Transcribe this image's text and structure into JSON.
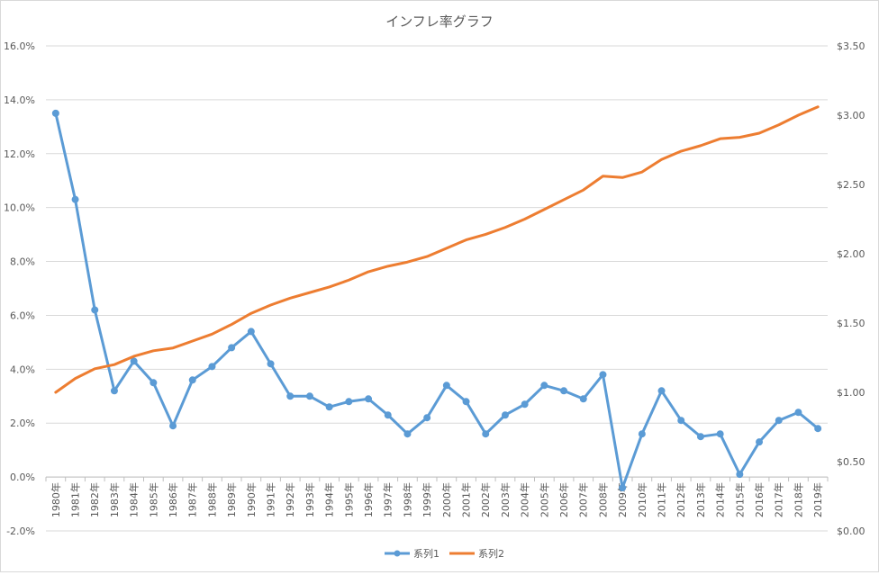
{
  "chart_data": {
    "type": "line",
    "title": "インフレ率グラフ",
    "categories": [
      "1980年",
      "1981年",
      "1982年",
      "1983年",
      "1984年",
      "1985年",
      "1986年",
      "1987年",
      "1988年",
      "1989年",
      "1990年",
      "1991年",
      "1992年",
      "1993年",
      "1994年",
      "1995年",
      "1996年",
      "1997年",
      "1998年",
      "1999年",
      "2000年",
      "2001年",
      "2002年",
      "2003年",
      "2004年",
      "2005年",
      "2006年",
      "2007年",
      "2008年",
      "2009年",
      "2010年",
      "2011年",
      "2012年",
      "2013年",
      "2014年",
      "2015年",
      "2016年",
      "2017年",
      "2018年",
      "2019年"
    ],
    "y_left": {
      "ticks": [
        "-2.0%",
        "0.0%",
        "2.0%",
        "4.0%",
        "6.0%",
        "8.0%",
        "10.0%",
        "12.0%",
        "14.0%",
        "16.0%"
      ],
      "ylim": [
        -2,
        16
      ]
    },
    "y_right": {
      "ticks": [
        "$0.00",
        "$0.50",
        "$1.00",
        "$1.50",
        "$2.00",
        "$2.50",
        "$3.00",
        "$3.50"
      ],
      "ylim": [
        0,
        3.5
      ]
    },
    "grid": true,
    "legend_position": "bottom",
    "series": [
      {
        "name": "系列1",
        "axis": "left",
        "color": "#5b9bd5",
        "marker": "circle",
        "values": [
          13.5,
          10.3,
          6.2,
          3.2,
          4.3,
          3.5,
          1.9,
          3.6,
          4.1,
          4.8,
          5.4,
          4.2,
          3.0,
          3.0,
          2.6,
          2.8,
          2.9,
          2.3,
          1.6,
          2.2,
          3.4,
          2.8,
          1.6,
          2.3,
          2.7,
          3.4,
          3.2,
          2.9,
          3.8,
          -0.4,
          1.6,
          3.2,
          2.1,
          1.5,
          1.6,
          0.1,
          1.3,
          2.1,
          2.4,
          1.8
        ]
      },
      {
        "name": "系列2",
        "axis": "right",
        "color": "#ed7d31",
        "marker": "none",
        "values": [
          1.0,
          1.1,
          1.17,
          1.2,
          1.26,
          1.3,
          1.32,
          1.37,
          1.42,
          1.49,
          1.57,
          1.63,
          1.68,
          1.72,
          1.76,
          1.81,
          1.87,
          1.91,
          1.94,
          1.98,
          2.04,
          2.1,
          2.14,
          2.19,
          2.25,
          2.32,
          2.39,
          2.46,
          2.56,
          2.55,
          2.59,
          2.68,
          2.74,
          2.78,
          2.83,
          2.84,
          2.87,
          2.93,
          3.0,
          3.06
        ]
      }
    ]
  }
}
